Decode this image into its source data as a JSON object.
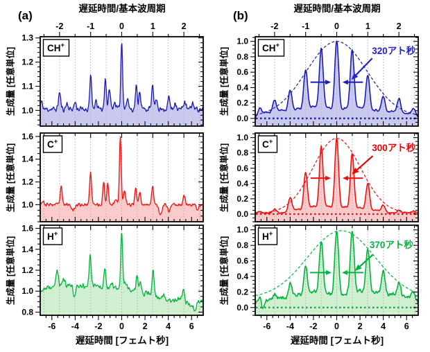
{
  "figure": {
    "panel_letters": {
      "a": "(a)",
      "b": "(b)"
    },
    "axis_titles": {
      "top": "遅延時間/基本波周期",
      "bottom": "遅延時間 [フェムト秒]",
      "y": "生成量 [任意単位]"
    },
    "x_range": [
      -7,
      7
    ],
    "period_fs": 2.67,
    "top_ticks": [
      -2,
      -1,
      0,
      1,
      2
    ],
    "bottom_ticks": [
      -6,
      -4,
      -2,
      0,
      2,
      4,
      6
    ],
    "grid_color": "#b0b0b0",
    "frame_color": "#000000"
  },
  "chart_data": [
    {
      "id": "a-ch",
      "type": "line",
      "column": "a",
      "row": 0,
      "ion": {
        "base": "CH",
        "sup": "+"
      },
      "color": "#1a1ab4",
      "fill": "#c9c9f0",
      "y_range": [
        0.935,
        1.305
      ],
      "y_ticks": [
        1.0,
        1.1,
        1.2,
        1.3
      ],
      "y_minor": 0.02,
      "baseline": 1.005,
      "noise": 0.014,
      "seed": 11,
      "peaks": [
        [
          -6.9,
          0.03,
          0.1
        ],
        [
          -5.34,
          0.07,
          0.09
        ],
        [
          -4.7,
          0.025,
          0.09
        ],
        [
          -4.0,
          0.03,
          0.09
        ],
        [
          -2.67,
          0.14,
          0.08
        ],
        [
          -2.2,
          0.03,
          0.1
        ],
        [
          -1.4,
          0.13,
          0.08
        ],
        [
          -1.05,
          0.085,
          0.08
        ],
        [
          -0.6,
          0.03,
          0.1
        ],
        [
          0,
          0.28,
          0.08
        ],
        [
          0.5,
          0.04,
          0.1
        ],
        [
          1.25,
          0.095,
          0.08
        ],
        [
          1.55,
          0.08,
          0.08
        ],
        [
          2.65,
          0.1,
          0.08
        ],
        [
          3.0,
          0.04,
          0.09
        ],
        [
          4.05,
          0.05,
          0.09
        ],
        [
          4.6,
          0.03,
          0.09
        ],
        [
          5.4,
          0.032,
          0.1
        ],
        [
          6.1,
          0.025,
          0.1
        ]
      ]
    },
    {
      "id": "a-c",
      "type": "line",
      "column": "a",
      "row": 1,
      "ion": {
        "base": "C",
        "sup": "+"
      },
      "color": "#ee1111",
      "fill": "#fbcaca",
      "y_range": [
        0.85,
        1.63
      ],
      "y_ticks": [
        1.0,
        1.2,
        1.4,
        1.6
      ],
      "y_minor": 0.05,
      "baseline": 1.0,
      "noise": 0.018,
      "seed": 23,
      "clip": [
        -999,
        1.62
      ],
      "peaks": [
        [
          -6.8,
          0.03,
          0.1
        ],
        [
          -5.2,
          0.15,
          0.09
        ],
        [
          -4.15,
          -0.05,
          0.12
        ],
        [
          -2.67,
          0.29,
          0.08
        ],
        [
          -1.55,
          0.2,
          0.08
        ],
        [
          -1.2,
          0.19,
          0.08
        ],
        [
          -0.5,
          0.05,
          0.1
        ],
        [
          -0.12,
          0.6,
          0.08
        ],
        [
          0.25,
          0.12,
          0.09
        ],
        [
          1.2,
          0.16,
          0.08
        ],
        [
          1.55,
          0.12,
          0.08
        ],
        [
          2.65,
          0.17,
          0.08
        ],
        [
          3.35,
          -0.09,
          0.12
        ],
        [
          4.05,
          -0.06,
          0.1
        ],
        [
          5.35,
          0.09,
          0.09
        ],
        [
          6.5,
          -0.04,
          0.1
        ]
      ]
    },
    {
      "id": "a-h",
      "type": "line",
      "column": "a",
      "row": 2,
      "ion": {
        "base": "H",
        "sup": "+"
      },
      "color": "#00b43c",
      "fill": "#d0eed0",
      "y_range": [
        0.77,
        1.63
      ],
      "y_ticks": [
        0.8,
        1.0,
        1.2,
        1.4,
        1.6
      ],
      "y_minor": 0.05,
      "baseline": 1.0,
      "noise": 0.03,
      "seed": 37,
      "clip": [
        -999,
        1.6
      ],
      "trend": [
        [
          -7,
          0.0
        ],
        [
          -5.5,
          0.06
        ],
        [
          -4,
          0.05
        ],
        [
          -2.5,
          0.06
        ],
        [
          -1,
          0.03
        ],
        [
          0,
          0.02
        ],
        [
          1,
          0.0
        ],
        [
          2.5,
          -0.03
        ],
        [
          4,
          -0.09
        ],
        [
          5,
          -0.07
        ],
        [
          6,
          -0.14
        ],
        [
          7,
          -0.08
        ]
      ],
      "peaks": [
        [
          -5.55,
          0.15,
          0.09
        ],
        [
          -5.0,
          0.07,
          0.09
        ],
        [
          -4.05,
          -0.1,
          0.1
        ],
        [
          -2.7,
          0.3,
          0.08
        ],
        [
          -1.45,
          0.2,
          0.08
        ],
        [
          -0.9,
          0.05,
          0.1
        ],
        [
          0,
          0.56,
          0.08
        ],
        [
          0.35,
          0.08,
          0.09
        ],
        [
          1.3,
          0.16,
          0.08
        ],
        [
          1.6,
          0.1,
          0.08
        ],
        [
          2.7,
          0.24,
          0.08
        ],
        [
          3.6,
          0.05,
          0.1
        ],
        [
          5.3,
          0.12,
          0.09
        ],
        [
          6.3,
          -0.06,
          0.1
        ]
      ]
    },
    {
      "id": "b-ch",
      "type": "line",
      "column": "b",
      "row": 0,
      "ion": {
        "base": "CH",
        "sup": "+"
      },
      "color": "#1a1ab4",
      "fill": "#c9c9f0",
      "y_range": [
        -0.1,
        1.06
      ],
      "y_ticks": [
        0.0,
        0.2,
        0.4,
        0.6,
        0.8,
        1.0
      ],
      "y_minor": 0.05,
      "baseline": 0.02,
      "noise": 0.012,
      "seed": 51,
      "clip": [
        -0.02,
        1.0
      ],
      "zero_line": true,
      "envelope": {
        "center": 0,
        "sigma": 2.6,
        "amp": 0.98,
        "offset": 0.02
      },
      "fwhm_arrows": {
        "y": 0.47,
        "inner": 0.5,
        "outer": 2.25
      },
      "annotation": {
        "text": "320アト秒",
        "color": "#2222cc",
        "tx": 4.9,
        "ty": 0.87,
        "arrow": [
          [
            3.05,
            0.78
          ],
          [
            1.25,
            0.5
          ]
        ]
      },
      "peaks": [
        [
          -6.6,
          0.1,
          0.17
        ],
        [
          -5.34,
          0.2,
          0.17
        ],
        [
          -4.0,
          0.33,
          0.17
        ],
        [
          -2.67,
          0.59,
          0.17
        ],
        [
          -1.33,
          0.86,
          0.17
        ],
        [
          0,
          0.98,
          0.17
        ],
        [
          1.33,
          0.84,
          0.17
        ],
        [
          2.67,
          0.52,
          0.17
        ],
        [
          4.0,
          0.25,
          0.17
        ],
        [
          5.34,
          0.22,
          0.17
        ],
        [
          6.6,
          0.1,
          0.17
        ],
        [
          -6.0,
          0.06,
          0.32
        ],
        [
          -4.7,
          0.09,
          0.32
        ],
        [
          -3.35,
          0.11,
          0.32
        ],
        [
          -2.0,
          0.14,
          0.32
        ],
        [
          -0.72,
          0.12,
          0.32
        ],
        [
          0.72,
          0.11,
          0.32
        ],
        [
          2.0,
          0.13,
          0.32
        ],
        [
          3.35,
          0.09,
          0.32
        ],
        [
          4.7,
          0.08,
          0.32
        ],
        [
          6.0,
          0.05,
          0.32
        ]
      ]
    },
    {
      "id": "b-c",
      "type": "line",
      "column": "b",
      "row": 1,
      "ion": {
        "base": "C",
        "sup": "+"
      },
      "color": "#ee1111",
      "fill": "#fbcaca",
      "y_range": [
        -0.1,
        1.06
      ],
      "y_ticks": [
        0.0,
        0.2,
        0.4,
        0.6,
        0.8,
        1.0
      ],
      "y_minor": 0.05,
      "baseline": 0.015,
      "noise": 0.01,
      "seed": 67,
      "clip": [
        -0.02,
        1.0
      ],
      "zero_line": true,
      "envelope": {
        "center": 0,
        "sigma": 2.05,
        "amp": 0.98,
        "offset": 0.01
      },
      "fwhm_arrows": {
        "y": 0.47,
        "inner": 0.5,
        "outer": 2.25
      },
      "annotation": {
        "text": "300アト秒",
        "color": "#ee0000",
        "tx": 4.9,
        "ty": 0.86,
        "arrow": [
          [
            3.1,
            0.76
          ],
          [
            1.3,
            0.52
          ]
        ]
      },
      "peaks": [
        [
          -6.6,
          0.02,
          0.16
        ],
        [
          -5.34,
          0.045,
          0.16
        ],
        [
          -4.0,
          0.2,
          0.16
        ],
        [
          -2.67,
          0.52,
          0.16
        ],
        [
          -1.33,
          0.86,
          0.16
        ],
        [
          0,
          0.98,
          0.16
        ],
        [
          1.33,
          0.76,
          0.16
        ],
        [
          2.67,
          0.38,
          0.16
        ],
        [
          4.0,
          0.1,
          0.16
        ],
        [
          5.34,
          0.035,
          0.16
        ],
        [
          6.6,
          0.02,
          0.16
        ],
        [
          -3.35,
          0.05,
          0.3
        ],
        [
          -2.0,
          0.09,
          0.3
        ],
        [
          -0.7,
          0.09,
          0.3
        ],
        [
          0.7,
          0.08,
          0.3
        ],
        [
          2.0,
          0.07,
          0.3
        ],
        [
          3.35,
          0.04,
          0.3
        ]
      ]
    },
    {
      "id": "b-h",
      "type": "line",
      "column": "b",
      "row": 2,
      "ion": {
        "base": "H",
        "sup": "+"
      },
      "color": "#00b43c",
      "fill": "#d0eed0",
      "y_range": [
        -0.1,
        1.06
      ],
      "y_ticks": [
        0.0,
        0.2,
        0.4,
        0.6,
        0.8,
        1.0
      ],
      "y_minor": 0.05,
      "baseline": 0.05,
      "noise": 0.028,
      "seed": 83,
      "clip": [
        -0.07,
        0.98
      ],
      "zero_line": true,
      "envelope": {
        "center": 0.4,
        "sigma": 2.9,
        "amp": 0.87,
        "offset": 0.12
      },
      "fwhm_arrows": {
        "y": 0.45,
        "inner": 0.45,
        "outer": 2.3
      },
      "annotation": {
        "text": "370アト秒",
        "color": "#00b43c",
        "tx": 4.7,
        "ty": 0.8,
        "arrow": [
          [
            3.1,
            0.68
          ],
          [
            1.55,
            0.47
          ]
        ]
      },
      "peaks": [
        [
          -6.6,
          0.08,
          0.17
        ],
        [
          -5.34,
          0.1,
          0.17
        ],
        [
          -4.0,
          0.22,
          0.17
        ],
        [
          -2.67,
          0.43,
          0.17
        ],
        [
          -1.33,
          0.75,
          0.17
        ],
        [
          0,
          0.92,
          0.17
        ],
        [
          1.33,
          0.9,
          0.17
        ],
        [
          2.67,
          0.67,
          0.17
        ],
        [
          4.0,
          0.38,
          0.17
        ],
        [
          5.34,
          0.24,
          0.17
        ],
        [
          6.6,
          0.13,
          0.17
        ],
        [
          -6.0,
          0.05,
          0.34
        ],
        [
          -4.7,
          0.08,
          0.34
        ],
        [
          -3.35,
          0.12,
          0.34
        ],
        [
          -2.0,
          0.16,
          0.34
        ],
        [
          -0.72,
          0.13,
          0.34
        ],
        [
          0.72,
          0.12,
          0.34
        ],
        [
          2.0,
          0.17,
          0.34
        ],
        [
          3.35,
          0.15,
          0.34
        ],
        [
          4.7,
          0.13,
          0.34
        ],
        [
          6.0,
          0.1,
          0.34
        ],
        [
          -6.35,
          -0.12,
          0.12
        ]
      ]
    }
  ]
}
